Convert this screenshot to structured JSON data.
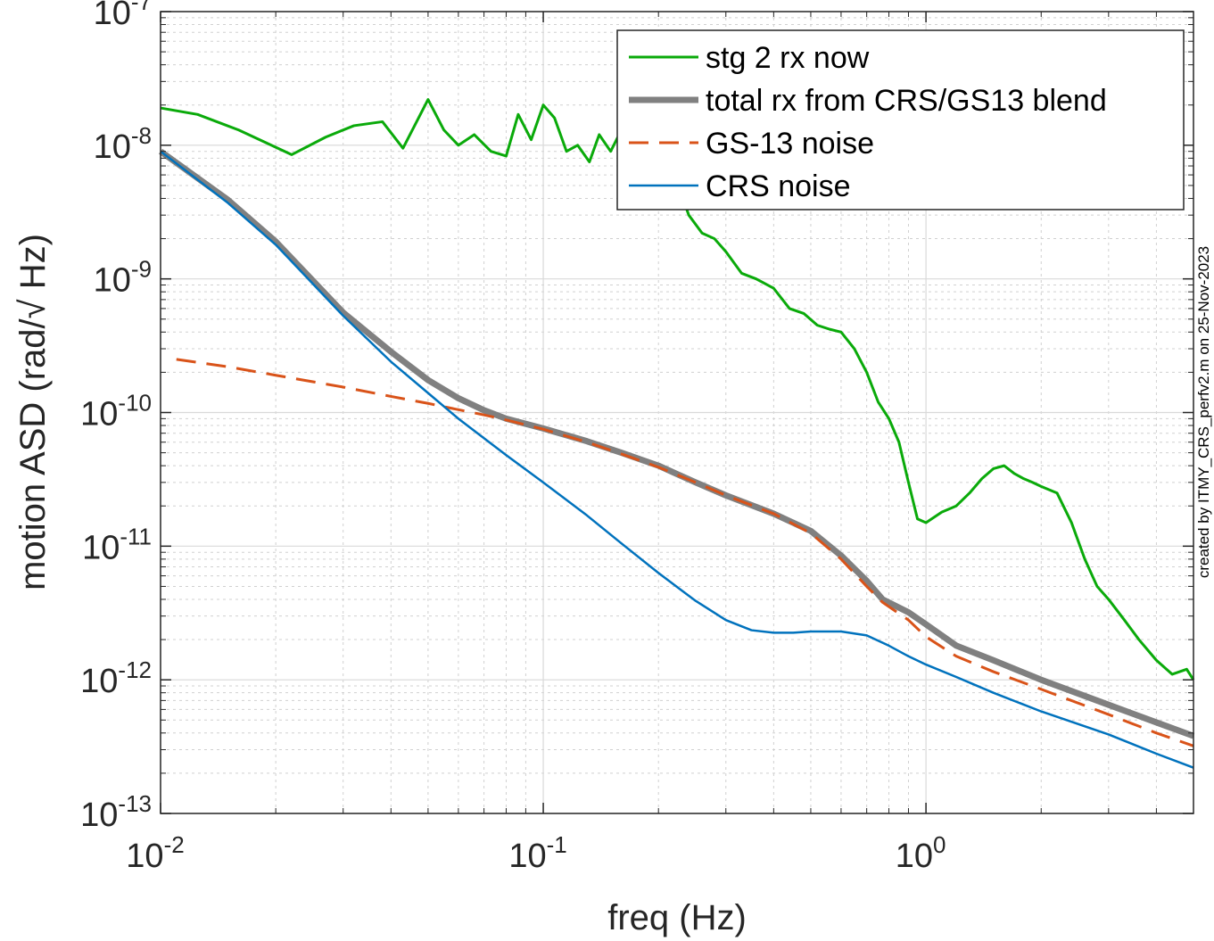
{
  "chart_data": {
    "type": "line",
    "xlabel": "freq (Hz)",
    "ylabel": "motion ASD (rad/√ Hz)",
    "xscale": "log",
    "yscale": "log",
    "xlim": [
      0.01,
      5
    ],
    "ylim": [
      1e-13,
      1e-07
    ],
    "grid": true,
    "legend_location": "top-right",
    "x_ticks": [
      {
        "base": "10",
        "exp": "-2"
      },
      {
        "base": "10",
        "exp": "-1"
      },
      {
        "base": "10",
        "exp": "0"
      }
    ],
    "y_ticks": [
      {
        "base": "10",
        "exp": "-7"
      },
      {
        "base": "10",
        "exp": "-8"
      },
      {
        "base": "10",
        "exp": "-9"
      },
      {
        "base": "10",
        "exp": "-10"
      },
      {
        "base": "10",
        "exp": "-11"
      },
      {
        "base": "10",
        "exp": "-12"
      },
      {
        "base": "10",
        "exp": "-13"
      }
    ],
    "series": [
      {
        "name": "stg 2 rx now",
        "color": "#0aaa0a",
        "style": "solid",
        "x": [
          0.01,
          0.0125,
          0.016,
          0.022,
          0.027,
          0.032,
          0.038,
          0.043,
          0.05,
          0.055,
          0.06,
          0.066,
          0.073,
          0.08,
          0.086,
          0.093,
          0.1,
          0.107,
          0.115,
          0.123,
          0.132,
          0.14,
          0.15,
          0.16,
          0.17,
          0.18,
          0.2,
          0.22,
          0.24,
          0.26,
          0.28,
          0.3,
          0.33,
          0.36,
          0.4,
          0.44,
          0.48,
          0.52,
          0.56,
          0.6,
          0.65,
          0.7,
          0.75,
          0.8,
          0.85,
          0.9,
          0.95,
          1.0,
          1.1,
          1.2,
          1.3,
          1.4,
          1.5,
          1.6,
          1.7,
          1.8,
          1.9,
          2.0,
          2.2,
          2.4,
          2.6,
          2.8,
          3.0,
          3.3,
          3.6,
          4.0,
          4.4,
          4.8,
          5.0
        ],
        "y": [
          1.9e-08,
          1.7e-08,
          1.3e-08,
          8.5e-09,
          1.15e-08,
          1.4e-08,
          1.5e-08,
          9.5e-09,
          2.2e-08,
          1.3e-08,
          1e-08,
          1.2e-08,
          9e-09,
          8.3e-09,
          1.7e-08,
          1.1e-08,
          2e-08,
          1.6e-08,
          9e-09,
          1e-08,
          7.5e-09,
          1.2e-08,
          9e-09,
          1.3e-08,
          8e-09,
          3.5e-09,
          4.5e-09,
          6e-09,
          3e-09,
          2.2e-09,
          2e-09,
          1.6e-09,
          1.1e-09,
          1e-09,
          8.5e-10,
          6e-10,
          5.5e-10,
          4.5e-10,
          4.2e-10,
          4e-10,
          3e-10,
          2e-10,
          1.2e-10,
          9e-11,
          6e-11,
          3e-11,
          1.6e-11,
          1.5e-11,
          1.8e-11,
          2e-11,
          2.5e-11,
          3.2e-11,
          3.8e-11,
          4e-11,
          3.5e-11,
          3.2e-11,
          3e-11,
          2.8e-11,
          2.5e-11,
          1.5e-11,
          8e-12,
          5e-12,
          4e-12,
          2.8e-12,
          2e-12,
          1.4e-12,
          1.1e-12,
          1.2e-12,
          1e-12
        ]
      },
      {
        "name": "total rx from CRS/GS13 blend",
        "color": "#808080",
        "style": "solid",
        "x": [
          0.01,
          0.015,
          0.02,
          0.03,
          0.04,
          0.05,
          0.06,
          0.07,
          0.08,
          0.1,
          0.13,
          0.16,
          0.2,
          0.25,
          0.3,
          0.4,
          0.5,
          0.6,
          0.7,
          0.77,
          0.9,
          1.0,
          1.2,
          1.5,
          2.0,
          3.0,
          4.0,
          5.0
        ],
        "y": [
          9e-09,
          3.9e-09,
          1.9e-09,
          5.6e-10,
          2.85e-10,
          1.75e-10,
          1.28e-10,
          1.04e-10,
          9e-11,
          7.6e-11,
          6.1e-11,
          5e-11,
          4e-11,
          3e-11,
          2.4e-11,
          1.75e-11,
          1.3e-11,
          8.5e-12,
          5.5e-12,
          4e-12,
          3.2e-12,
          2.6e-12,
          1.8e-12,
          1.4e-12,
          1e-12,
          6.5e-13,
          4.8e-13,
          3.8e-13
        ]
      },
      {
        "name": "GS-13 noise",
        "color": "#d95319",
        "style": "dashed",
        "x": [
          0.011,
          0.015,
          0.02,
          0.03,
          0.04,
          0.05,
          0.06,
          0.07,
          0.08,
          0.1,
          0.13,
          0.16,
          0.2,
          0.25,
          0.3,
          0.4,
          0.5,
          0.6,
          0.7,
          0.77,
          0.9,
          1.0,
          1.2,
          1.5,
          2.0,
          3.0,
          4.0,
          5.0
        ],
        "y": [
          2.5e-10,
          2.2e-10,
          1.9e-10,
          1.55e-10,
          1.32e-10,
          1.17e-10,
          1.05e-10,
          9.6e-11,
          8.8e-11,
          7.5e-11,
          6e-11,
          4.9e-11,
          3.9e-11,
          3e-11,
          2.4e-11,
          1.75e-11,
          1.25e-11,
          8e-12,
          5e-12,
          3.8e-12,
          2.8e-12,
          2.1e-12,
          1.5e-12,
          1.15e-12,
          8.5e-13,
          5.5e-13,
          4e-13,
          3.2e-13
        ]
      },
      {
        "name": "CRS noise",
        "color": "#0072bd",
        "style": "solid",
        "x": [
          0.01,
          0.015,
          0.02,
          0.03,
          0.04,
          0.05,
          0.06,
          0.08,
          0.1,
          0.13,
          0.16,
          0.2,
          0.25,
          0.3,
          0.35,
          0.4,
          0.45,
          0.5,
          0.6,
          0.7,
          0.8,
          0.9,
          1.0,
          1.2,
          1.5,
          2.0,
          3.0,
          4.0,
          5.0
        ],
        "y": [
          9e-09,
          3.7e-09,
          1.8e-09,
          5.3e-10,
          2.4e-10,
          1.4e-10,
          9e-11,
          4.8e-11,
          3e-11,
          1.7e-11,
          1.05e-11,
          6.3e-12,
          3.9e-12,
          2.8e-12,
          2.35e-12,
          2.25e-12,
          2.25e-12,
          2.3e-12,
          2.3e-12,
          2.15e-12,
          1.8e-12,
          1.5e-12,
          1.3e-12,
          1.05e-12,
          8e-13,
          5.8e-13,
          3.9e-13,
          2.8e-13,
          2.2e-13
        ]
      }
    ]
  },
  "annotations": {
    "credit": "created by ITMY_CRS_perfv2.m on 25-Nov-2023"
  }
}
